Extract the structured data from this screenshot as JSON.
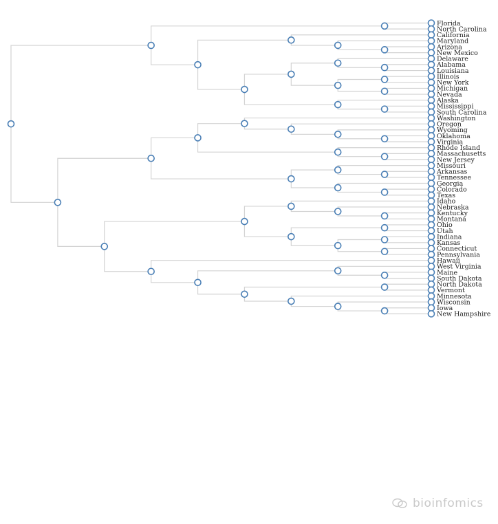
{
  "watermark": {
    "text": "bioinfomics",
    "icon": "chat-bubble-icon"
  },
  "colors": {
    "link": "#d3d3d3",
    "node_stroke": "#4a7fb5",
    "node_fill": "#ffffff"
  },
  "tree": {
    "children": [
      {
        "children": [
          {
            "children": [
              {
                "name": "Florida"
              },
              {
                "name": "North Carolina"
              }
            ]
          },
          {
            "children": [
              {
                "children": [
                  {
                    "name": "California"
                  },
                  {
                    "children": [
                      {
                        "name": "Maryland"
                      },
                      {
                        "children": [
                          {
                            "name": "Arizona"
                          },
                          {
                            "name": "New Mexico"
                          }
                        ]
                      }
                    ]
                  }
                ]
              },
              {
                "children": [
                  {
                    "children": [
                      {
                        "children": [
                          {
                            "name": "Delaware"
                          },
                          {
                            "children": [
                              {
                                "name": "Alabama"
                              },
                              {
                                "name": "Louisiana"
                              }
                            ]
                          }
                        ]
                      },
                      {
                        "children": [
                          {
                            "children": [
                              {
                                "name": "Illinois"
                              },
                              {
                                "name": "New York"
                              }
                            ]
                          },
                          {
                            "children": [
                              {
                                "name": "Michigan"
                              },
                              {
                                "name": "Nevada"
                              }
                            ]
                          }
                        ]
                      }
                    ]
                  },
                  {
                    "children": [
                      {
                        "name": "Alaska"
                      },
                      {
                        "children": [
                          {
                            "name": "Mississippi"
                          },
                          {
                            "name": "South Carolina"
                          }
                        ]
                      }
                    ]
                  }
                ]
              }
            ]
          }
        ]
      },
      {
        "children": [
          {
            "children": [
              {
                "children": [
                  {
                    "children": [
                      {
                        "name": "Washington"
                      },
                      {
                        "children": [
                          {
                            "name": "Oregon"
                          },
                          {
                            "children": [
                              {
                                "name": "Wyoming"
                              },
                              {
                                "children": [
                                  {
                                    "name": "Oklahoma"
                                  },
                                  {
                                    "name": "Virginia"
                                  }
                                ]
                              }
                            ]
                          }
                        ]
                      }
                    ]
                  },
                  {
                    "children": [
                      {
                        "name": "Rhode Island"
                      },
                      {
                        "children": [
                          {
                            "name": "Massachusetts"
                          },
                          {
                            "name": "New Jersey"
                          }
                        ]
                      }
                    ]
                  }
                ]
              },
              {
                "children": [
                  {
                    "children": [
                      {
                        "name": "Missouri"
                      },
                      {
                        "children": [
                          {
                            "name": "Arkansas"
                          },
                          {
                            "name": "Tennessee"
                          }
                        ]
                      }
                    ]
                  },
                  {
                    "children": [
                      {
                        "name": "Georgia"
                      },
                      {
                        "children": [
                          {
                            "name": "Colorado"
                          },
                          {
                            "name": "Texas"
                          }
                        ]
                      }
                    ]
                  }
                ]
              }
            ]
          },
          {
            "children": [
              {
                "children": [
                  {
                    "children": [
                      {
                        "name": "Idaho"
                      },
                      {
                        "children": [
                          {
                            "name": "Nebraska"
                          },
                          {
                            "children": [
                              {
                                "name": "Kentucky"
                              },
                              {
                                "name": "Montana"
                              }
                            ]
                          }
                        ]
                      }
                    ]
                  },
                  {
                    "children": [
                      {
                        "children": [
                          {
                            "name": "Ohio"
                          },
                          {
                            "name": "Utah"
                          }
                        ]
                      },
                      {
                        "children": [
                          {
                            "children": [
                              {
                                "name": "Indiana"
                              },
                              {
                                "name": "Kansas"
                              }
                            ]
                          },
                          {
                            "children": [
                              {
                                "name": "Connecticut"
                              },
                              {
                                "name": "Pennsylvania"
                              }
                            ]
                          }
                        ]
                      }
                    ]
                  }
                ]
              },
              {
                "children": [
                  {
                    "name": "Hawaii"
                  },
                  {
                    "children": [
                      {
                        "children": [
                          {
                            "name": "West Virginia"
                          },
                          {
                            "children": [
                              {
                                "name": "Maine"
                              },
                              {
                                "name": "South Dakota"
                              }
                            ]
                          }
                        ]
                      },
                      {
                        "children": [
                          {
                            "children": [
                              {
                                "name": "North Dakota"
                              },
                              {
                                "name": "Vermont"
                              }
                            ]
                          },
                          {
                            "children": [
                              {
                                "name": "Minnesota"
                              },
                              {
                                "children": [
                                  {
                                    "name": "Wisconsin"
                                  },
                                  {
                                    "children": [
                                      {
                                        "name": "Iowa"
                                      },
                                      {
                                        "name": "New Hampshire"
                                      }
                                    ]
                                  }
                                ]
                              }
                            ]
                          }
                        ]
                      }
                    ]
                  }
                ]
              }
            ]
          }
        ]
      }
    ]
  }
}
